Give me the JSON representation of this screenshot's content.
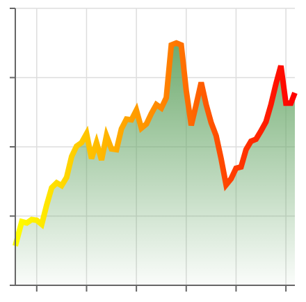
{
  "chart_data": {
    "type": "area",
    "x": [
      5.7,
      7,
      8,
      9,
      10,
      11,
      12,
      13,
      14,
      15,
      16,
      17,
      18,
      19,
      20,
      21,
      22,
      23,
      24,
      25,
      26,
      27,
      28,
      29,
      30,
      31,
      32,
      33,
      34,
      35,
      36,
      37,
      38,
      39,
      40,
      41,
      42,
      43,
      44,
      45,
      46,
      47,
      48,
      49,
      50,
      51,
      52,
      53,
      54,
      55,
      56,
      57,
      58,
      59,
      60,
      61,
      61.8
    ],
    "values": [
      0.57,
      0.92,
      0.9,
      0.95,
      0.94,
      0.88,
      1.16,
      1.41,
      1.48,
      1.44,
      1.56,
      1.86,
      2.01,
      2.06,
      2.19,
      1.83,
      2.06,
      1.81,
      2.16,
      1.97,
      1.96,
      2.26,
      2.4,
      2.39,
      2.53,
      2.27,
      2.33,
      2.48,
      2.61,
      2.56,
      2.71,
      3.47,
      3.5,
      3.47,
      2.81,
      2.31,
      2.61,
      2.93,
      2.61,
      2.35,
      2.16,
      1.83,
      1.45,
      1.54,
      1.69,
      1.71,
      1.96,
      2.08,
      2.11,
      2.23,
      2.36,
      2.61,
      2.91,
      3.17,
      2.63,
      2.63,
      2.78
    ],
    "line_colors": [
      "#ffff00",
      "#ff8c00",
      "#ff0000"
    ],
    "fill_color": "#6aa86a",
    "xlim": [
      5.7,
      61.8
    ],
    "xticks": [
      10,
      20,
      30,
      40,
      50,
      60
    ],
    "ylim": [
      0,
      4
    ],
    "yticks": [
      0,
      1,
      2,
      3,
      4
    ],
    "grid": true
  }
}
